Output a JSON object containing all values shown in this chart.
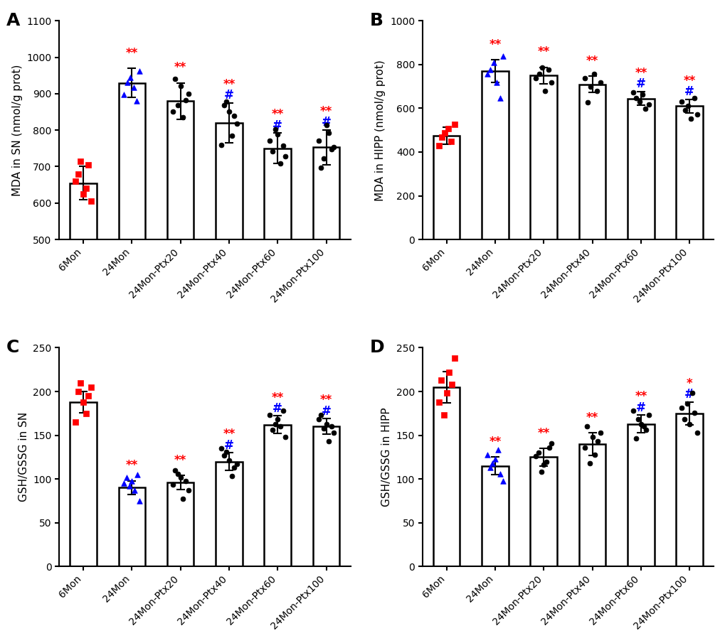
{
  "categories": [
    "6Mon",
    "24Mon",
    "24Mon-Ptx20",
    "24Mon-Ptx40",
    "24Mon-Ptx60",
    "24Mon-Ptx100"
  ],
  "panels": {
    "A": {
      "title": "A",
      "ylabel": "MDA in SN (nmol/g prot)",
      "ylim": [
        500,
        1100
      ],
      "yticks": [
        500,
        600,
        700,
        800,
        900,
        1000,
        1100
      ],
      "bar_means": [
        655,
        930,
        880,
        820,
        750,
        753
      ],
      "bar_sds": [
        45,
        40,
        50,
        55,
        42,
        48
      ],
      "dot_colors": [
        "#FF0000",
        "#0000FF",
        "#000000",
        "#000000",
        "#000000",
        "#000000"
      ],
      "dot_markers": [
        "s",
        "^",
        "o",
        "o",
        "o",
        "o"
      ],
      "dots": [
        [
          605,
          625,
          640,
          660,
          680,
          705,
          715
        ],
        [
          880,
          898,
          918,
          932,
          945,
          962
        ],
        [
          835,
          852,
          868,
          883,
          900,
          922,
          940
        ],
        [
          760,
          785,
          818,
          840,
          852,
          868,
          878
        ],
        [
          708,
          728,
          742,
          758,
          772,
          788,
          802
        ],
        [
          698,
          722,
          748,
          753,
          772,
          792,
          815
        ]
      ],
      "sig_top": [
        null,
        "**",
        "**",
        "**",
        "**",
        "**"
      ],
      "sig_bot": [
        null,
        null,
        null,
        "#",
        "#",
        "#"
      ],
      "sig_top_color": "#FF0000",
      "sig_bot_color": "#0000FF"
    },
    "B": {
      "title": "B",
      "ylabel": "MDA in HIPP (nmol/g prot)",
      "ylim": [
        0,
        1000
      ],
      "yticks": [
        0,
        200,
        400,
        600,
        800,
        1000
      ],
      "bar_means": [
        475,
        770,
        750,
        710,
        645,
        610
      ],
      "bar_sds": [
        38,
        52,
        38,
        38,
        32,
        32
      ],
      "dot_colors": [
        "#FF0000",
        "#0000FF",
        "#000000",
        "#000000",
        "#000000",
        "#000000"
      ],
      "dot_markers": [
        "s",
        "^",
        "o",
        "o",
        "o",
        "o"
      ],
      "dots": [
        [
          428,
          448,
          468,
          488,
          508,
          528
        ],
        [
          648,
          718,
          758,
          778,
          808,
          840
        ],
        [
          678,
          718,
          738,
          758,
          778,
          788
        ],
        [
          628,
          678,
          698,
          718,
          738,
          758
        ],
        [
          598,
          618,
          632,
          648,
          662,
          672
        ],
        [
          552,
          572,
          592,
          612,
          632,
          648
        ]
      ],
      "sig_top": [
        null,
        "**",
        "**",
        "**",
        "**",
        "**"
      ],
      "sig_bot": [
        null,
        null,
        null,
        null,
        "#",
        "#"
      ],
      "sig_top_color": "#FF0000",
      "sig_bot_color": "#0000FF"
    },
    "C": {
      "title": "C",
      "ylabel": "GSH/GSSG in SN",
      "ylim": [
        0,
        250
      ],
      "yticks": [
        0,
        50,
        100,
        150,
        200,
        250
      ],
      "bar_means": [
        188,
        90,
        96,
        120,
        162,
        160
      ],
      "bar_sds": [
        12,
        8,
        8,
        10,
        10,
        9
      ],
      "dot_colors": [
        "#FF0000",
        "#0000FF",
        "#000000",
        "#000000",
        "#000000",
        "#000000"
      ],
      "dot_markers": [
        "s",
        "^",
        "o",
        "o",
        "o",
        "o"
      ],
      "dots": [
        [
          165,
          175,
          188,
          195,
          200,
          205,
          210
        ],
        [
          75,
          87,
          92,
          95,
          98,
          102,
          105
        ],
        [
          77,
          87,
          94,
          98,
          102,
          106,
          110
        ],
        [
          103,
          113,
          117,
          121,
          127,
          131,
          135
        ],
        [
          148,
          156,
          160,
          163,
          168,
          173,
          178
        ],
        [
          143,
          153,
          158,
          160,
          163,
          168,
          173
        ]
      ],
      "sig_top": [
        null,
        "**",
        "**",
        "**",
        "**",
        "**"
      ],
      "sig_bot": [
        null,
        null,
        null,
        "#",
        "#",
        "#"
      ],
      "sig_top_color": "#FF0000",
      "sig_bot_color": "#0000FF"
    },
    "D": {
      "title": "D",
      "ylabel": "GSH/GSSG in HIPP",
      "ylim": [
        0,
        250
      ],
      "yticks": [
        0,
        50,
        100,
        150,
        200,
        250
      ],
      "bar_means": [
        205,
        115,
        125,
        140,
        163,
        175
      ],
      "bar_sds": [
        18,
        10,
        10,
        13,
        10,
        13
      ],
      "dot_colors": [
        "#FF0000",
        "#0000FF",
        "#000000",
        "#000000",
        "#000000",
        "#000000"
      ],
      "dot_markers": [
        "s",
        "^",
        "o",
        "o",
        "o",
        "o"
      ],
      "dots": [
        [
          173,
          188,
          198,
          208,
          213,
          222,
          238
        ],
        [
          98,
          106,
          113,
          118,
          123,
          128,
          133
        ],
        [
          108,
          116,
          120,
          126,
          130,
          136,
          141
        ],
        [
          118,
          128,
          136,
          143,
          148,
          153,
          160
        ],
        [
          146,
          156,
          160,
          163,
          168,
          173,
          178
        ],
        [
          153,
          163,
          168,
          176,
          181,
          186,
          198
        ]
      ],
      "sig_top": [
        null,
        "**",
        "**",
        "**",
        "**",
        "*"
      ],
      "sig_bot": [
        null,
        null,
        null,
        null,
        "#",
        "#"
      ],
      "sig_top_color": "#FF0000",
      "sig_bot_color": "#0000FF"
    }
  },
  "bar_color": "#FFFFFF",
  "bar_edgecolor": "#000000",
  "bar_linewidth": 1.8,
  "error_color": "#000000",
  "label_fontsize": 11,
  "tick_fontsize": 10,
  "panel_label_fontsize": 18,
  "sig_fontsize": 12,
  "cat_fontsize": 10
}
